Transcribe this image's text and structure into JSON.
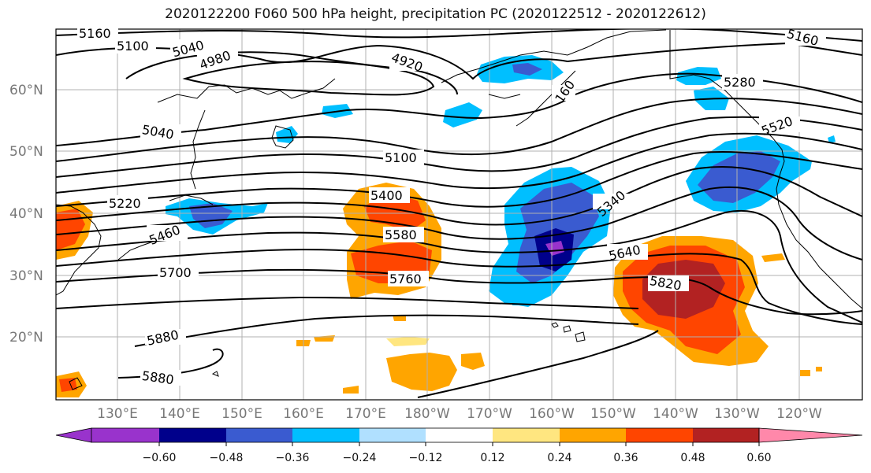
{
  "title": "2020122200 F060 500 hPa height, precipitation PC (2020122512 - 2020122612)",
  "lat_labels": [
    "60°N",
    "50°N",
    "40°N",
    "30°N",
    "20°N"
  ],
  "lon_labels": [
    "130°E",
    "140°E",
    "150°E",
    "160°E",
    "170°E",
    "180°W",
    "170°W",
    "160°W",
    "150°W",
    "140°W",
    "130°W",
    "120°W"
  ],
  "colorbar": {
    "ticks": [
      "−0.60",
      "−0.48",
      "−0.36",
      "−0.24",
      "−0.12",
      "0.12",
      "0.24",
      "0.36",
      "0.48",
      "0.60"
    ],
    "colors": [
      "#9933cc",
      "#00008b",
      "#3a5bd0",
      "#00bfff",
      "#b0e0ff",
      "#ffffff",
      "#ffe680",
      "#ffa500",
      "#ff4500",
      "#b22222",
      "#ff88aa"
    ]
  },
  "contour_labels": [
    "5160",
    "5100",
    "5040",
    "4980",
    "4920",
    "5160",
    "5280",
    "160",
    "5040",
    "5100",
    "5520",
    "5220",
    "5400",
    "5340",
    "5460",
    "5580",
    "5640",
    "5700",
    "5760",
    "5820",
    "5880",
    "5880"
  ],
  "colors": {
    "negative_dark": "#3a5bd0",
    "negative_light": "#00bfff",
    "positive_light": "#ffa500",
    "positive_dark": "#ff4500",
    "positive_darkest": "#b22222"
  }
}
